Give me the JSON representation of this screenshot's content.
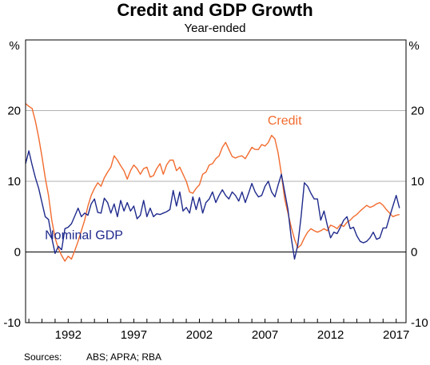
{
  "chart_data": {
    "type": "line",
    "title": "Credit and GDP Growth",
    "subtitle": "Year-ended",
    "unit_left": "%",
    "unit_right": "%",
    "xlim": [
      1988.75,
      2017.75
    ],
    "ylim": [
      -10,
      30
    ],
    "y_ticks": [
      -10,
      0,
      10,
      20
    ],
    "x_ticks": [
      {
        "label": "1992",
        "value": 1992
      },
      {
        "label": "1997",
        "value": 1997
      },
      {
        "label": "2002",
        "value": 2002
      },
      {
        "label": "2007",
        "value": 2007
      },
      {
        "label": "2012",
        "value": 2012
      },
      {
        "label": "2017",
        "value": 2017
      }
    ],
    "gridlines": [
      0,
      10,
      20
    ],
    "series": [
      {
        "name": "Credit",
        "color": "#f26b2e",
        "points": [
          [
            1988.75,
            21.0
          ],
          [
            1989.0,
            20.6
          ],
          [
            1989.25,
            20.3
          ],
          [
            1989.5,
            18.5
          ],
          [
            1989.75,
            16.2
          ],
          [
            1990.0,
            13.5
          ],
          [
            1990.25,
            10.5
          ],
          [
            1990.5,
            8.0
          ],
          [
            1990.75,
            4.5
          ],
          [
            1991.0,
            2.0
          ],
          [
            1991.25,
            0.5
          ],
          [
            1991.5,
            -0.5
          ],
          [
            1991.75,
            -1.3
          ],
          [
            1992.0,
            -0.6
          ],
          [
            1992.25,
            -1.0
          ],
          [
            1992.5,
            0.2
          ],
          [
            1992.75,
            1.5
          ],
          [
            1993.0,
            3.0
          ],
          [
            1993.25,
            4.5
          ],
          [
            1993.5,
            6.5
          ],
          [
            1993.75,
            8.0
          ],
          [
            1994.0,
            9.0
          ],
          [
            1994.25,
            9.8
          ],
          [
            1994.5,
            9.3
          ],
          [
            1994.75,
            10.5
          ],
          [
            1995.0,
            11.3
          ],
          [
            1995.25,
            12.0
          ],
          [
            1995.5,
            13.6
          ],
          [
            1995.75,
            13.0
          ],
          [
            1996.0,
            12.2
          ],
          [
            1996.25,
            11.5
          ],
          [
            1996.5,
            10.3
          ],
          [
            1996.75,
            11.5
          ],
          [
            1997.0,
            12.3
          ],
          [
            1997.25,
            11.8
          ],
          [
            1997.5,
            11.0
          ],
          [
            1997.75,
            11.8
          ],
          [
            1998.0,
            12.0
          ],
          [
            1998.25,
            10.6
          ],
          [
            1998.5,
            10.8
          ],
          [
            1998.75,
            11.8
          ],
          [
            1999.0,
            12.5
          ],
          [
            1999.25,
            11.0
          ],
          [
            1999.5,
            12.3
          ],
          [
            1999.75,
            13.0
          ],
          [
            2000.0,
            13.0
          ],
          [
            2000.25,
            11.5
          ],
          [
            2000.5,
            12.0
          ],
          [
            2000.75,
            11.0
          ],
          [
            2001.0,
            10.0
          ],
          [
            2001.25,
            8.5
          ],
          [
            2001.5,
            8.3
          ],
          [
            2001.75,
            9.0
          ],
          [
            2002.0,
            9.5
          ],
          [
            2002.25,
            11.0
          ],
          [
            2002.5,
            11.3
          ],
          [
            2002.75,
            12.3
          ],
          [
            2003.0,
            12.5
          ],
          [
            2003.25,
            13.2
          ],
          [
            2003.5,
            13.6
          ],
          [
            2003.75,
            14.8
          ],
          [
            2004.0,
            15.5
          ],
          [
            2004.25,
            14.5
          ],
          [
            2004.5,
            13.5
          ],
          [
            2004.75,
            13.3
          ],
          [
            2005.0,
            13.5
          ],
          [
            2005.25,
            13.6
          ],
          [
            2005.5,
            13.2
          ],
          [
            2005.75,
            14.0
          ],
          [
            2006.0,
            14.8
          ],
          [
            2006.25,
            14.5
          ],
          [
            2006.5,
            14.5
          ],
          [
            2006.75,
            15.2
          ],
          [
            2007.0,
            15.0
          ],
          [
            2007.25,
            15.5
          ],
          [
            2007.5,
            16.5
          ],
          [
            2007.75,
            16.0
          ],
          [
            2008.0,
            14.0
          ],
          [
            2008.25,
            11.0
          ],
          [
            2008.5,
            7.5
          ],
          [
            2008.75,
            5.5
          ],
          [
            2009.0,
            3.5
          ],
          [
            2009.25,
            1.8
          ],
          [
            2009.5,
            0.6
          ],
          [
            2009.75,
            1.0
          ],
          [
            2010.0,
            2.0
          ],
          [
            2010.25,
            2.8
          ],
          [
            2010.5,
            3.3
          ],
          [
            2010.75,
            3.0
          ],
          [
            2011.0,
            2.8
          ],
          [
            2011.25,
            3.0
          ],
          [
            2011.5,
            3.3
          ],
          [
            2011.75,
            3.0
          ],
          [
            2012.0,
            3.8
          ],
          [
            2012.25,
            3.6
          ],
          [
            2012.5,
            3.3
          ],
          [
            2012.75,
            3.9
          ],
          [
            2013.0,
            3.6
          ],
          [
            2013.25,
            4.2
          ],
          [
            2013.5,
            4.5
          ],
          [
            2013.75,
            5.0
          ],
          [
            2014.0,
            5.3
          ],
          [
            2014.25,
            5.8
          ],
          [
            2014.5,
            6.2
          ],
          [
            2014.75,
            6.6
          ],
          [
            2015.0,
            6.3
          ],
          [
            2015.25,
            6.5
          ],
          [
            2015.5,
            6.8
          ],
          [
            2015.75,
            7.0
          ],
          [
            2016.0,
            6.6
          ],
          [
            2016.25,
            6.0
          ],
          [
            2016.5,
            5.5
          ],
          [
            2016.75,
            5.0
          ],
          [
            2017.0,
            5.2
          ],
          [
            2017.25,
            5.3
          ]
        ]
      },
      {
        "name": "Nominal GDP",
        "color": "#1f2a8c",
        "points": [
          [
            1988.75,
            12.5
          ],
          [
            1989.0,
            14.3
          ],
          [
            1989.25,
            12.3
          ],
          [
            1989.5,
            10.5
          ],
          [
            1989.75,
            9.0
          ],
          [
            1990.0,
            7.0
          ],
          [
            1990.25,
            5.0
          ],
          [
            1990.5,
            4.6
          ],
          [
            1990.75,
            2.0
          ],
          [
            1991.0,
            -0.2
          ],
          [
            1991.25,
            0.8
          ],
          [
            1991.5,
            0.3
          ],
          [
            1991.75,
            3.3
          ],
          [
            1992.0,
            3.5
          ],
          [
            1992.25,
            4.0
          ],
          [
            1992.5,
            5.1
          ],
          [
            1992.75,
            6.2
          ],
          [
            1993.0,
            5.0
          ],
          [
            1993.25,
            5.5
          ],
          [
            1993.5,
            5.2
          ],
          [
            1993.75,
            6.8
          ],
          [
            1994.0,
            7.5
          ],
          [
            1994.25,
            5.6
          ],
          [
            1994.5,
            5.5
          ],
          [
            1994.75,
            7.6
          ],
          [
            1995.0,
            7.0
          ],
          [
            1995.25,
            5.5
          ],
          [
            1995.5,
            6.8
          ],
          [
            1995.75,
            5.0
          ],
          [
            1996.0,
            7.3
          ],
          [
            1996.25,
            5.8
          ],
          [
            1996.5,
            7.0
          ],
          [
            1996.75,
            5.8
          ],
          [
            1997.0,
            6.5
          ],
          [
            1997.25,
            4.7
          ],
          [
            1997.5,
            5.2
          ],
          [
            1997.75,
            7.3
          ],
          [
            1998.0,
            5.0
          ],
          [
            1998.25,
            6.2
          ],
          [
            1998.5,
            5.0
          ],
          [
            1998.75,
            5.4
          ],
          [
            1999.0,
            5.3
          ],
          [
            1999.25,
            5.5
          ],
          [
            1999.5,
            5.7
          ],
          [
            1999.75,
            6.0
          ],
          [
            2000.0,
            8.7
          ],
          [
            2000.25,
            6.5
          ],
          [
            2000.5,
            8.5
          ],
          [
            2000.75,
            5.8
          ],
          [
            2001.0,
            6.3
          ],
          [
            2001.25,
            5.5
          ],
          [
            2001.5,
            7.8
          ],
          [
            2001.75,
            6.0
          ],
          [
            2002.0,
            7.7
          ],
          [
            2002.25,
            5.5
          ],
          [
            2002.5,
            7.0
          ],
          [
            2002.75,
            7.5
          ],
          [
            2003.0,
            8.5
          ],
          [
            2003.25,
            7.0
          ],
          [
            2003.5,
            8.0
          ],
          [
            2003.75,
            8.8
          ],
          [
            2004.0,
            8.0
          ],
          [
            2004.25,
            7.5
          ],
          [
            2004.5,
            8.5
          ],
          [
            2004.75,
            8.0
          ],
          [
            2005.0,
            7.2
          ],
          [
            2005.25,
            8.5
          ],
          [
            2005.5,
            7.0
          ],
          [
            2005.75,
            8.3
          ],
          [
            2006.0,
            9.7
          ],
          [
            2006.25,
            8.5
          ],
          [
            2006.5,
            7.8
          ],
          [
            2006.75,
            8.0
          ],
          [
            2007.0,
            9.3
          ],
          [
            2007.25,
            10.0
          ],
          [
            2007.5,
            8.5
          ],
          [
            2007.75,
            7.8
          ],
          [
            2008.0,
            9.5
          ],
          [
            2008.25,
            11.0
          ],
          [
            2008.5,
            8.5
          ],
          [
            2008.75,
            6.0
          ],
          [
            2009.0,
            2.0
          ],
          [
            2009.25,
            -1.0
          ],
          [
            2009.5,
            1.0
          ],
          [
            2009.75,
            5.0
          ],
          [
            2010.0,
            9.8
          ],
          [
            2010.25,
            9.3
          ],
          [
            2010.5,
            8.3
          ],
          [
            2010.75,
            7.5
          ],
          [
            2011.0,
            7.5
          ],
          [
            2011.25,
            4.5
          ],
          [
            2011.5,
            5.8
          ],
          [
            2011.75,
            3.8
          ],
          [
            2012.0,
            2.0
          ],
          [
            2012.25,
            2.8
          ],
          [
            2012.5,
            2.6
          ],
          [
            2012.75,
            3.5
          ],
          [
            2013.0,
            4.5
          ],
          [
            2013.25,
            5.0
          ],
          [
            2013.5,
            3.3
          ],
          [
            2013.75,
            3.5
          ],
          [
            2014.0,
            2.3
          ],
          [
            2014.25,
            1.5
          ],
          [
            2014.5,
            1.3
          ],
          [
            2014.75,
            1.5
          ],
          [
            2015.0,
            2.0
          ],
          [
            2015.25,
            2.8
          ],
          [
            2015.5,
            1.8
          ],
          [
            2015.75,
            2.0
          ],
          [
            2016.0,
            3.4
          ],
          [
            2016.25,
            3.4
          ],
          [
            2016.5,
            5.0
          ],
          [
            2016.75,
            6.5
          ],
          [
            2017.0,
            8.0
          ],
          [
            2017.25,
            6.2
          ]
        ]
      }
    ],
    "series_labels": [
      {
        "text": "Credit",
        "series": 0,
        "x": 2008.5,
        "y": 18.0,
        "color": "#f26b2e"
      },
      {
        "text": "Nominal GDP",
        "series": 1,
        "x": 1993.2,
        "y": 1.8,
        "color": "#1f2a8c"
      }
    ]
  },
  "footer": {
    "sources_label": "Sources:",
    "sources_text": "ABS; APRA; RBA"
  }
}
